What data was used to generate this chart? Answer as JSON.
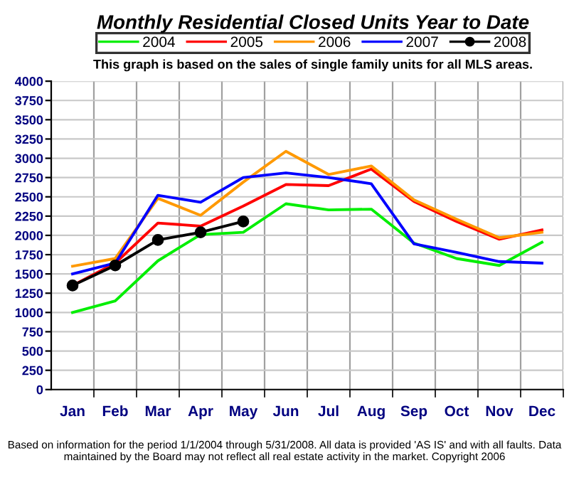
{
  "chart_data": {
    "type": "line",
    "title": "Monthly Residential Closed Units Year to Date",
    "subtitle": "This graph is based on the sales of single family units for all MLS areas.",
    "categories": [
      "Jan",
      "Feb",
      "Mar",
      "Apr",
      "May",
      "Jun",
      "Jul",
      "Aug",
      "Sep",
      "Oct",
      "Nov",
      "Dec"
    ],
    "series": [
      {
        "name": "2004",
        "color": "#00ee00",
        "marker": "none",
        "values": [
          1000,
          1150,
          1670,
          2010,
          2040,
          2410,
          2330,
          2340,
          1900,
          1700,
          1610,
          1910
        ]
      },
      {
        "name": "2005",
        "color": "#ff0000",
        "marker": "none",
        "values": [
          1350,
          1640,
          2160,
          2120,
          2380,
          2660,
          2645,
          2860,
          2440,
          2180,
          1950,
          2070
        ]
      },
      {
        "name": "2006",
        "color": "#ff9900",
        "marker": "none",
        "values": [
          1600,
          1700,
          2480,
          2260,
          2690,
          3090,
          2790,
          2900,
          2460,
          2210,
          1970,
          2040
        ]
      },
      {
        "name": "2007",
        "color": "#0000ff",
        "marker": "none",
        "values": [
          1500,
          1640,
          2520,
          2430,
          2750,
          2810,
          2750,
          2670,
          1890,
          1780,
          1660,
          1640
        ]
      },
      {
        "name": "2008",
        "color": "#000000",
        "marker": "circle",
        "values": [
          1350,
          1610,
          1940,
          2040,
          2180,
          null,
          null,
          null,
          null,
          null,
          null,
          null
        ]
      }
    ],
    "ylim": [
      0,
      4000
    ],
    "yticks": [
      0,
      250,
      500,
      750,
      1000,
      1250,
      1500,
      1750,
      2000,
      2250,
      2500,
      2750,
      3000,
      3250,
      3500,
      3750,
      4000
    ],
    "grid": true,
    "legend": "top",
    "line_style": "solid",
    "annotations": [
      "Based on information for the period 1/1/2004 through 5/31/2008. All data is provided 'AS IS' and with all faults. Data maintained by the Board may not reflect all real estate activity in the market. Copyright 2006"
    ]
  }
}
